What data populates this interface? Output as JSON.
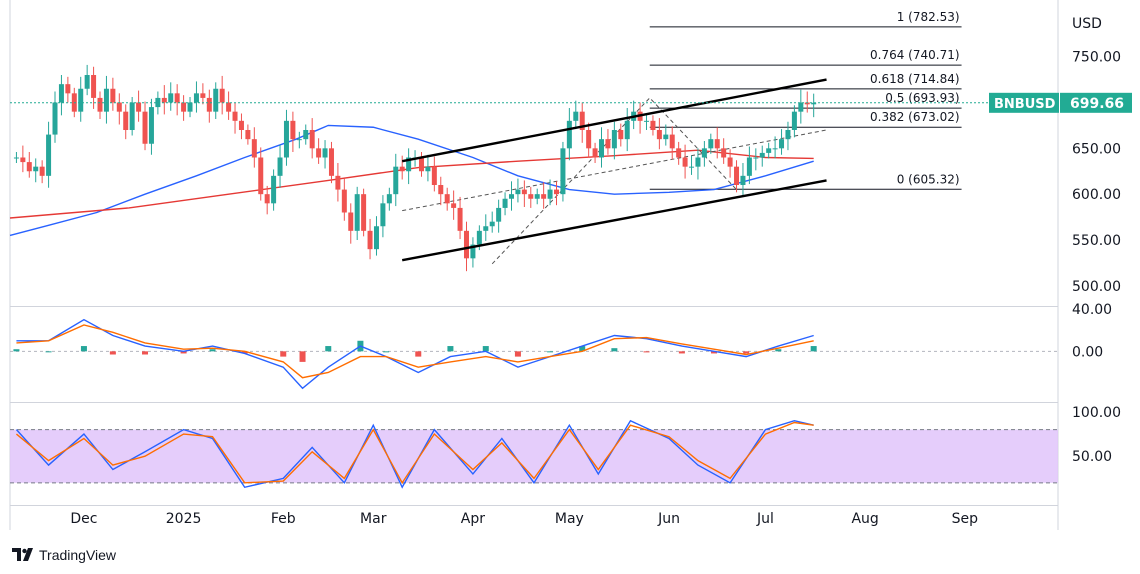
{
  "chart_data": [
    {
      "type": "candlestick",
      "symbol": "BNBUSD",
      "currency": "USD",
      "last_price": "699.66",
      "accent_color": "#22ab94",
      "x_ticks": [
        "Dec",
        "2025",
        "Feb",
        "Mar",
        "Apr",
        "May",
        "Jun",
        "Jul",
        "Aug",
        "Sep"
      ],
      "y_ticks": [
        "750.00",
        "700.00",
        "650.00",
        "600.00",
        "550.00",
        "500.00"
      ],
      "ylim": [
        478,
        790
      ],
      "xlim": [
        "2024-11-08",
        "2025-09-30"
      ],
      "candles": {
        "colors": {
          "up": "#26a69a",
          "down": "#ef5350"
        },
        "dates": [
          "2024-11-10",
          "2024-11-12",
          "2024-11-14",
          "2024-11-16",
          "2024-11-18",
          "2024-11-20",
          "2024-11-22",
          "2024-11-24",
          "2024-11-26",
          "2024-11-28",
          "2024-11-30",
          "2024-12-02",
          "2024-12-04",
          "2024-12-06",
          "2024-12-08",
          "2024-12-10",
          "2024-12-12",
          "2024-12-14",
          "2024-12-16",
          "2024-12-18",
          "2024-12-20",
          "2024-12-22",
          "2024-12-24",
          "2024-12-26",
          "2024-12-28",
          "2024-12-30",
          "2025-01-01",
          "2025-01-03",
          "2025-01-05",
          "2025-01-07",
          "2025-01-09",
          "2025-01-11",
          "2025-01-13",
          "2025-01-15",
          "2025-01-17",
          "2025-01-19",
          "2025-01-21",
          "2025-01-23",
          "2025-01-25",
          "2025-01-27",
          "2025-01-29",
          "2025-01-31",
          "2025-02-02",
          "2025-02-04",
          "2025-02-06",
          "2025-02-08",
          "2025-02-10",
          "2025-02-12",
          "2025-02-14",
          "2025-02-16",
          "2025-02-18",
          "2025-02-20",
          "2025-02-22",
          "2025-02-24",
          "2025-02-26",
          "2025-02-28",
          "2025-03-02",
          "2025-03-04",
          "2025-03-06",
          "2025-03-08",
          "2025-03-10",
          "2025-03-12",
          "2025-03-14",
          "2025-03-16",
          "2025-03-18",
          "2025-03-20",
          "2025-03-22",
          "2025-03-24",
          "2025-03-26",
          "2025-03-28",
          "2025-03-30",
          "2025-04-01",
          "2025-04-03",
          "2025-04-05",
          "2025-04-07",
          "2025-04-09",
          "2025-04-11",
          "2025-04-13",
          "2025-04-15",
          "2025-04-17",
          "2025-04-19",
          "2025-04-21",
          "2025-04-23",
          "2025-04-25",
          "2025-04-27",
          "2025-04-29",
          "2025-05-01",
          "2025-05-03",
          "2025-05-05",
          "2025-05-07",
          "2025-05-09",
          "2025-05-11",
          "2025-05-13",
          "2025-05-15",
          "2025-05-17",
          "2025-05-19",
          "2025-05-21",
          "2025-05-23",
          "2025-05-25",
          "2025-05-27",
          "2025-05-29",
          "2025-05-31",
          "2025-06-02",
          "2025-06-04",
          "2025-06-06",
          "2025-06-08",
          "2025-06-10",
          "2025-06-12",
          "2025-06-14",
          "2025-06-16",
          "2025-06-18",
          "2025-06-20",
          "2025-06-22",
          "2025-06-24",
          "2025-06-26",
          "2025-06-28",
          "2025-06-30",
          "2025-07-02",
          "2025-07-04",
          "2025-07-06",
          "2025-07-08",
          "2025-07-10",
          "2025-07-12",
          "2025-07-14",
          "2025-07-16"
        ],
        "close": [
          640,
          635,
          625,
          630,
          620,
          665,
          700,
          720,
          710,
          690,
          715,
          730,
          705,
          690,
          715,
          700,
          690,
          670,
          700,
          690,
          655,
          695,
          705,
          700,
          710,
          700,
          690,
          700,
          710,
          705,
          690,
          715,
          700,
          690,
          680,
          670,
          660,
          640,
          600,
          590,
          620,
          640,
          680,
          660,
          660,
          670,
          650,
          640,
          650,
          620,
          605,
          580,
          560,
          600,
          560,
          540,
          565,
          590,
          600,
          630,
          625,
          640,
          640,
          625,
          630,
          610,
          600,
          590,
          585,
          560,
          530,
          545,
          560,
          565,
          570,
          585,
          595,
          600,
          605,
          600,
          595,
          600,
          595,
          605,
          600,
          650,
          680,
          690,
          670,
          650,
          640,
          660,
          650,
          670,
          660,
          680,
          690,
          680,
          680,
          670,
          660,
          665,
          650,
          640,
          630,
          630,
          640,
          650,
          660,
          650,
          640,
          630,
          610,
          620,
          640,
          640,
          645,
          650,
          650,
          660,
          670,
          690,
          700,
          698,
          699.66
        ]
      },
      "moving_averages": [
        {
          "name": "",
          "color": "#2962ff",
          "x": [
            "2024-11-08",
            "2024-11-20",
            "2024-12-05",
            "2024-12-20",
            "2025-01-05",
            "2025-01-20",
            "2025-02-05",
            "2025-02-15",
            "2025-03-01",
            "2025-03-15",
            "2025-04-01",
            "2025-04-15",
            "2025-05-01",
            "2025-05-15",
            "2025-06-01",
            "2025-06-15",
            "2025-07-01",
            "2025-07-16"
          ],
          "y": [
            555,
            566,
            580,
            600,
            620,
            640,
            660,
            675,
            673,
            660,
            640,
            620,
            605,
            600,
            602,
            605,
            620,
            636
          ]
        },
        {
          "name": "",
          "color": "#e53935",
          "x": [
            "2024-11-08",
            "2024-12-15",
            "2025-01-15",
            "2025-02-15",
            "2025-03-15",
            "2025-04-15",
            "2025-05-15",
            "2025-06-10",
            "2025-07-01",
            "2025-07-16"
          ],
          "y": [
            574,
            585,
            600,
            615,
            629,
            636,
            642,
            648,
            640,
            639
          ]
        }
      ],
      "channel_lines": [
        {
          "x": [
            "2025-03-10",
            "2025-07-20"
          ],
          "y": [
            636,
            725
          ]
        },
        {
          "x": [
            "2025-03-10",
            "2025-07-20"
          ],
          "y": [
            528,
            615
          ]
        }
      ],
      "dashed_lines": [
        {
          "x": [
            "2025-03-10",
            "2025-07-20"
          ],
          "y": [
            582,
            670
          ]
        },
        {
          "x": [
            "2025-04-07",
            "2025-05-26",
            "2025-06-22"
          ],
          "y": [
            524,
            705,
            605
          ]
        }
      ],
      "fibonacci": {
        "x_start": "2025-05-26",
        "x_end": "2025-08-31",
        "levels": [
          {
            "label": "1 (782.53)",
            "value": 782.53
          },
          {
            "label": "0.764 (740.71)",
            "value": 740.71
          },
          {
            "label": "0.618 (714.84)",
            "value": 714.84
          },
          {
            "label": "0.5 (693.93)",
            "value": 693.93
          },
          {
            "label": "0.382 (673.02)",
            "value": 673.02
          },
          {
            "label": "0 (605.32)",
            "value": 605.32
          }
        ]
      }
    },
    {
      "type": "macd",
      "y_ticks": [
        "40.00",
        "0.00"
      ],
      "ylim": [
        -48,
        42
      ],
      "x": [
        "2024-11-10",
        "2024-11-20",
        "2024-12-01",
        "2024-12-10",
        "2024-12-20",
        "2025-01-01",
        "2025-01-10",
        "2025-01-20",
        "2025-02-01",
        "2025-02-07",
        "2025-02-15",
        "2025-02-25",
        "2025-03-05",
        "2025-03-15",
        "2025-03-25",
        "2025-04-05",
        "2025-04-15",
        "2025-04-25",
        "2025-05-05",
        "2025-05-15",
        "2025-05-25",
        "2025-06-05",
        "2025-06-15",
        "2025-06-25",
        "2025-07-05",
        "2025-07-16"
      ],
      "macd": [
        10,
        10,
        30,
        15,
        5,
        0,
        5,
        -2,
        -15,
        -35,
        -15,
        5,
        -5,
        -20,
        -5,
        0,
        -15,
        -5,
        5,
        15,
        12,
        5,
        0,
        -5,
        5,
        15
      ],
      "signal": [
        8,
        10,
        25,
        18,
        8,
        2,
        3,
        0,
        -10,
        -25,
        -20,
        -5,
        -5,
        -15,
        -10,
        -5,
        -10,
        -5,
        0,
        12,
        13,
        7,
        2,
        -3,
        3,
        10
      ],
      "histogram": [
        2,
        0,
        5,
        -3,
        -3,
        -2,
        2,
        -2,
        -5,
        -10,
        5,
        10,
        0,
        -5,
        5,
        5,
        -5,
        0,
        5,
        3,
        -1,
        -2,
        -2,
        -2,
        2,
        5
      ],
      "colors": {
        "macd": "#2962ff",
        "signal": "#ff6d00",
        "hist_up": "#26a69a",
        "hist_down": "#ef5350"
      }
    },
    {
      "type": "stochastic",
      "y_ticks": [
        "100.00",
        "50.00"
      ],
      "ylim": [
        -5,
        110
      ],
      "bands": [
        80,
        20
      ],
      "band_fill": "#e1c4fa",
      "x": [
        "2024-11-10",
        "2024-11-20",
        "2024-12-01",
        "2024-12-10",
        "2024-12-20",
        "2025-01-01",
        "2025-01-10",
        "2025-01-20",
        "2025-02-01",
        "2025-02-10",
        "2025-02-20",
        "2025-03-01",
        "2025-03-10",
        "2025-03-20",
        "2025-04-01",
        "2025-04-10",
        "2025-04-20",
        "2025-05-01",
        "2025-05-10",
        "2025-05-20",
        "2025-06-01",
        "2025-06-10",
        "2025-06-20",
        "2025-07-01",
        "2025-07-10",
        "2025-07-16"
      ],
      "k": [
        80,
        40,
        75,
        35,
        55,
        80,
        70,
        15,
        25,
        60,
        20,
        85,
        15,
        80,
        30,
        70,
        20,
        85,
        30,
        90,
        70,
        40,
        20,
        80,
        90,
        85
      ],
      "d": [
        75,
        45,
        70,
        40,
        50,
        75,
        72,
        20,
        22,
        55,
        25,
        80,
        20,
        75,
        35,
        65,
        25,
        80,
        35,
        85,
        72,
        45,
        25,
        75,
        88,
        85
      ],
      "colors": {
        "k": "#2962ff",
        "d": "#ff6d00"
      }
    }
  ],
  "brand": {
    "name": "TradingView",
    "logo": "tradingview-logo"
  }
}
